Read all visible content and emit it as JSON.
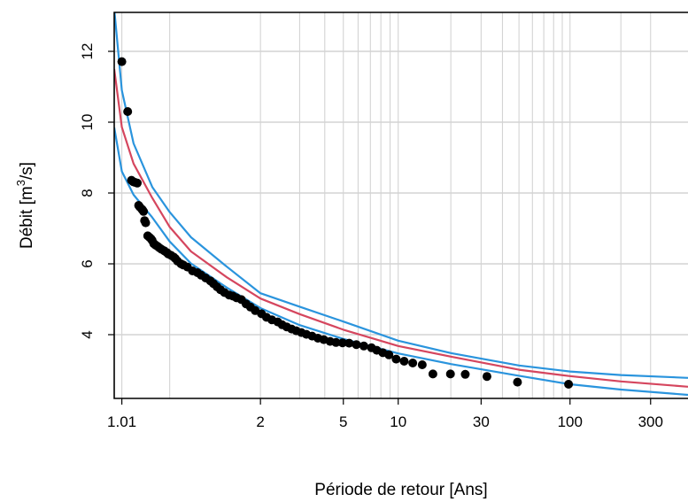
{
  "chart_data": {
    "type": "line",
    "title": "",
    "xlabel": "Période de retour [Ans]",
    "ylabel_main": "Débit  [m",
    "ylabel_sup": "3",
    "ylabel_end": "/s]",
    "x_scale": "log(log(T/(T-1)))",
    "xlim": [
      1.006,
      500
    ],
    "ylim": [
      2.2,
      13.1
    ],
    "grid": true,
    "legend": "none",
    "x_ticks": [
      {
        "value": 1.01,
        "label": "1.01"
      },
      {
        "value": 2,
        "label": "2"
      },
      {
        "value": 5,
        "label": "5"
      },
      {
        "value": 10,
        "label": "10"
      },
      {
        "value": 30,
        "label": "30"
      },
      {
        "value": 100,
        "label": "100"
      },
      {
        "value": 300,
        "label": "300"
      }
    ],
    "x_grid": [
      1.01,
      1.1,
      2,
      3,
      4,
      5,
      6,
      7,
      8,
      9,
      10,
      20,
      30,
      40,
      50,
      60,
      70,
      80,
      90,
      100,
      200,
      300
    ],
    "y_ticks": [
      {
        "value": 4,
        "label": "4"
      },
      {
        "value": 6,
        "label": "6"
      },
      {
        "value": 8,
        "label": "8"
      },
      {
        "value": 10,
        "label": "10"
      },
      {
        "value": 12,
        "label": "12"
      }
    ],
    "colors": {
      "fit": "#d5465e",
      "ci": "#2a94dd",
      "points": "#000000",
      "grid": "#d3d3d3"
    },
    "series": [
      {
        "role": "fit",
        "x": [
          1.006,
          1.01,
          1.02,
          1.05,
          1.1,
          1.2,
          1.5,
          2,
          3,
          5,
          10,
          20,
          50,
          100,
          200,
          500
        ],
        "y": [
          11.5,
          9.86,
          8.83,
          7.86,
          7.04,
          6.35,
          5.62,
          5.02,
          4.58,
          4.14,
          3.68,
          3.38,
          3.01,
          2.83,
          2.68,
          2.53
        ]
      },
      {
        "role": "ci-upper",
        "x": [
          1.006,
          1.01,
          1.02,
          1.05,
          1.1,
          1.2,
          1.5,
          2,
          3,
          5,
          10,
          20,
          50,
          100,
          200,
          500
        ],
        "y": [
          13.2,
          10.9,
          9.4,
          8.17,
          7.46,
          6.75,
          5.92,
          5.17,
          4.79,
          4.37,
          3.83,
          3.48,
          3.13,
          2.96,
          2.86,
          2.78
        ]
      },
      {
        "role": "ci-lower",
        "x": [
          1.006,
          1.01,
          1.02,
          1.05,
          1.1,
          1.2,
          1.5,
          2,
          3,
          5,
          10,
          20,
          50,
          100,
          200,
          500
        ],
        "y": [
          9.85,
          8.61,
          7.95,
          7.31,
          6.63,
          6.01,
          5.33,
          4.75,
          4.27,
          3.88,
          3.47,
          3.17,
          2.84,
          2.6,
          2.45,
          2.3
        ]
      }
    ],
    "observations": {
      "x": [
        1.01,
        1.0143,
        1.0178,
        1.0196,
        1.0216,
        1.0244,
        1.0262,
        1.0276,
        1.0305,
        1.0319,
        1.0334,
        1.0352,
        1.0371,
        1.0408,
        1.0441,
        1.0472,
        1.0499,
        1.0534,
        1.0577,
        1.063,
        1.0677,
        1.0736,
        1.0813,
        1.0897,
        1.0947,
        1.1048,
        1.1154,
        1.1217,
        1.1305,
        1.147,
        1.1574,
        1.1797,
        1.2089,
        1.2403,
        1.2657,
        1.3,
        1.3377,
        1.3656,
        1.3986,
        1.4318,
        1.4743,
        1.5267,
        1.5718,
        1.6186,
        1.6853,
        1.7542,
        1.8227,
        1.9041,
        2.0197,
        2.12,
        2.2341,
        2.3726,
        2.4828,
        2.6053,
        2.7453,
        2.8889,
        3.0574,
        3.2346,
        3.4519,
        3.6901,
        3.9537,
        4.2613,
        4.5724,
        4.9498,
        5.3706,
        5.8691,
        6.4436,
        7.0987,
        7.5909,
        8.2,
        8.8683,
        9.7368,
        10.8036,
        12.0839,
        13.6898,
        15.7576,
        19.8939,
        24.2466,
        32.4444,
        49.0,
        98.0
      ],
      "y": [
        11.71,
        10.3,
        8.36,
        8.32,
        8.3,
        8.28,
        7.65,
        7.61,
        7.55,
        7.52,
        7.48,
        7.22,
        7.16,
        6.79,
        6.75,
        6.71,
        6.66,
        6.57,
        6.53,
        6.49,
        6.45,
        6.41,
        6.37,
        6.32,
        6.28,
        6.24,
        6.19,
        6.15,
        6.08,
        6.0,
        5.97,
        5.91,
        5.8,
        5.75,
        5.68,
        5.6,
        5.52,
        5.44,
        5.35,
        5.27,
        5.19,
        5.12,
        5.09,
        5.04,
        4.99,
        4.87,
        4.78,
        4.68,
        4.59,
        4.49,
        4.42,
        4.36,
        4.28,
        4.22,
        4.16,
        4.11,
        4.06,
        4.01,
        3.96,
        3.9,
        3.86,
        3.81,
        3.78,
        3.77,
        3.76,
        3.72,
        3.68,
        3.63,
        3.56,
        3.49,
        3.43,
        3.31,
        3.25,
        3.2,
        3.15,
        2.89,
        2.89,
        2.88,
        2.82,
        2.66,
        2.6
      ]
    }
  }
}
